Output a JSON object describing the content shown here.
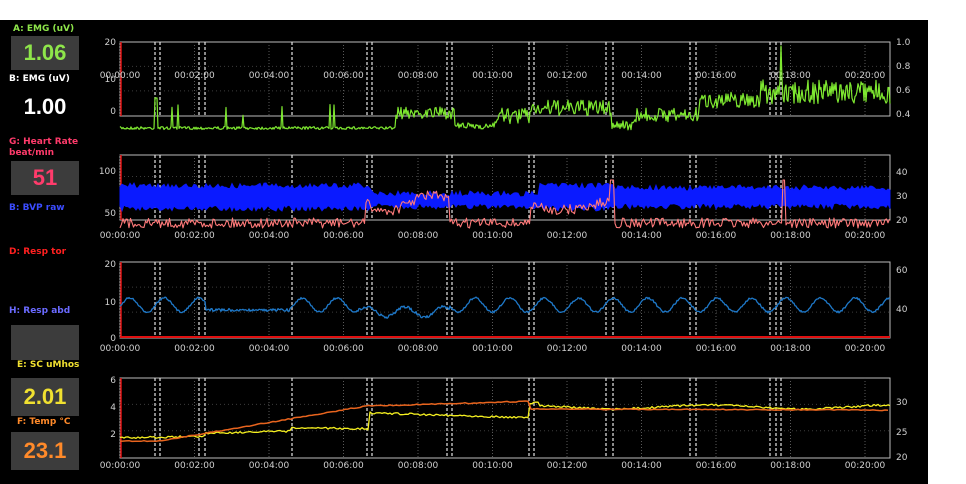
{
  "channels": {
    "a": {
      "label": "A: EMG (uV)",
      "value": "1.06",
      "color": "#8ee54a"
    },
    "b": {
      "label": "B: EMG (uV)",
      "value": "1.00",
      "color": "#ffffff"
    },
    "g": {
      "label": "G: Heart Rate",
      "unit": "beat/min",
      "value": "51",
      "color": "#ff3b6b"
    },
    "bvp": {
      "label": "B:  BVP raw",
      "color": "#3b4cff"
    },
    "d": {
      "label": "D:  Resp tor",
      "color": "#ff2020"
    },
    "h": {
      "label": "H: Resp abd",
      "color": "#6a6aff"
    },
    "e": {
      "label": "E: SC uMhos",
      "value": "2.01",
      "color": "#f0e030"
    },
    "f": {
      "label": "F: Temp °C",
      "value": "23.1",
      "color": "#ff8a2a"
    }
  },
  "time_axis": [
    "00:00:00",
    "00:02:00",
    "00:04:00",
    "00:06:00",
    "00:08:00",
    "00:10:00",
    "00:12:00",
    "00:14:00",
    "00:16:00",
    "00:18:00",
    "00:20:00"
  ],
  "panels": [
    {
      "left_ticks": [
        "20",
        "10",
        "0"
      ],
      "right_ticks": [
        "1.0",
        "0.8",
        "0.6",
        "0.4"
      ]
    },
    {
      "left_ticks": [
        "100",
        "50"
      ],
      "right_ticks": [
        "40",
        "30",
        "20"
      ]
    },
    {
      "left_ticks": [
        "20",
        "10",
        "0"
      ],
      "right_ticks": [
        "60",
        "40"
      ]
    },
    {
      "left_ticks": [
        "6",
        "4",
        "2"
      ],
      "right_ticks": [
        "30",
        "25",
        "20"
      ]
    }
  ],
  "colors": {
    "emg": "#7ee830",
    "bvp": "#0a1aff",
    "heart_rate": "#ff7a7a",
    "resp_abd": "#1e78c8",
    "resp_tor": "#e01010",
    "sc": "#f5f020",
    "temp": "#e8641e"
  }
}
